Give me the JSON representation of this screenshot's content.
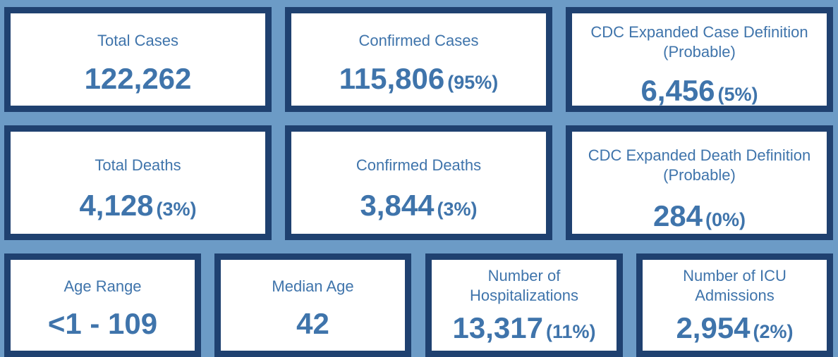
{
  "cards": [
    {
      "label": "Total Cases",
      "value": "122,262"
    },
    {
      "label": "Confirmed Cases",
      "value": "115,806",
      "pct": "(95%)"
    },
    {
      "label_line1": "CDC Expanded Case Definition",
      "label_line2": "(Probable)",
      "value": "6,456",
      "pct": "(5%)"
    },
    {
      "label": "Total Deaths",
      "value": "4,128",
      "pct": "(3%)"
    },
    {
      "label": "Confirmed Deaths",
      "value": "3,844",
      "pct": "(3%)"
    },
    {
      "label_line1": "CDC Expanded Death Definition",
      "label_line2": "(Probable)",
      "value": "284",
      "pct": "(0%)"
    },
    {
      "label": "Age Range",
      "value": "<1 - 109"
    },
    {
      "label": "Median Age",
      "value": "42"
    },
    {
      "label_line1": "Number of",
      "label_line2": "Hospitalizations",
      "value": "13,317",
      "pct": "(11%)"
    },
    {
      "label_line1": "Number of ICU",
      "label_line2": "Admissions",
      "value": "2,954",
      "pct": "(2%)"
    }
  ],
  "colors": {
    "background": "#6c9bc6",
    "card_border": "#1f4170",
    "text": "#3f74ab"
  }
}
